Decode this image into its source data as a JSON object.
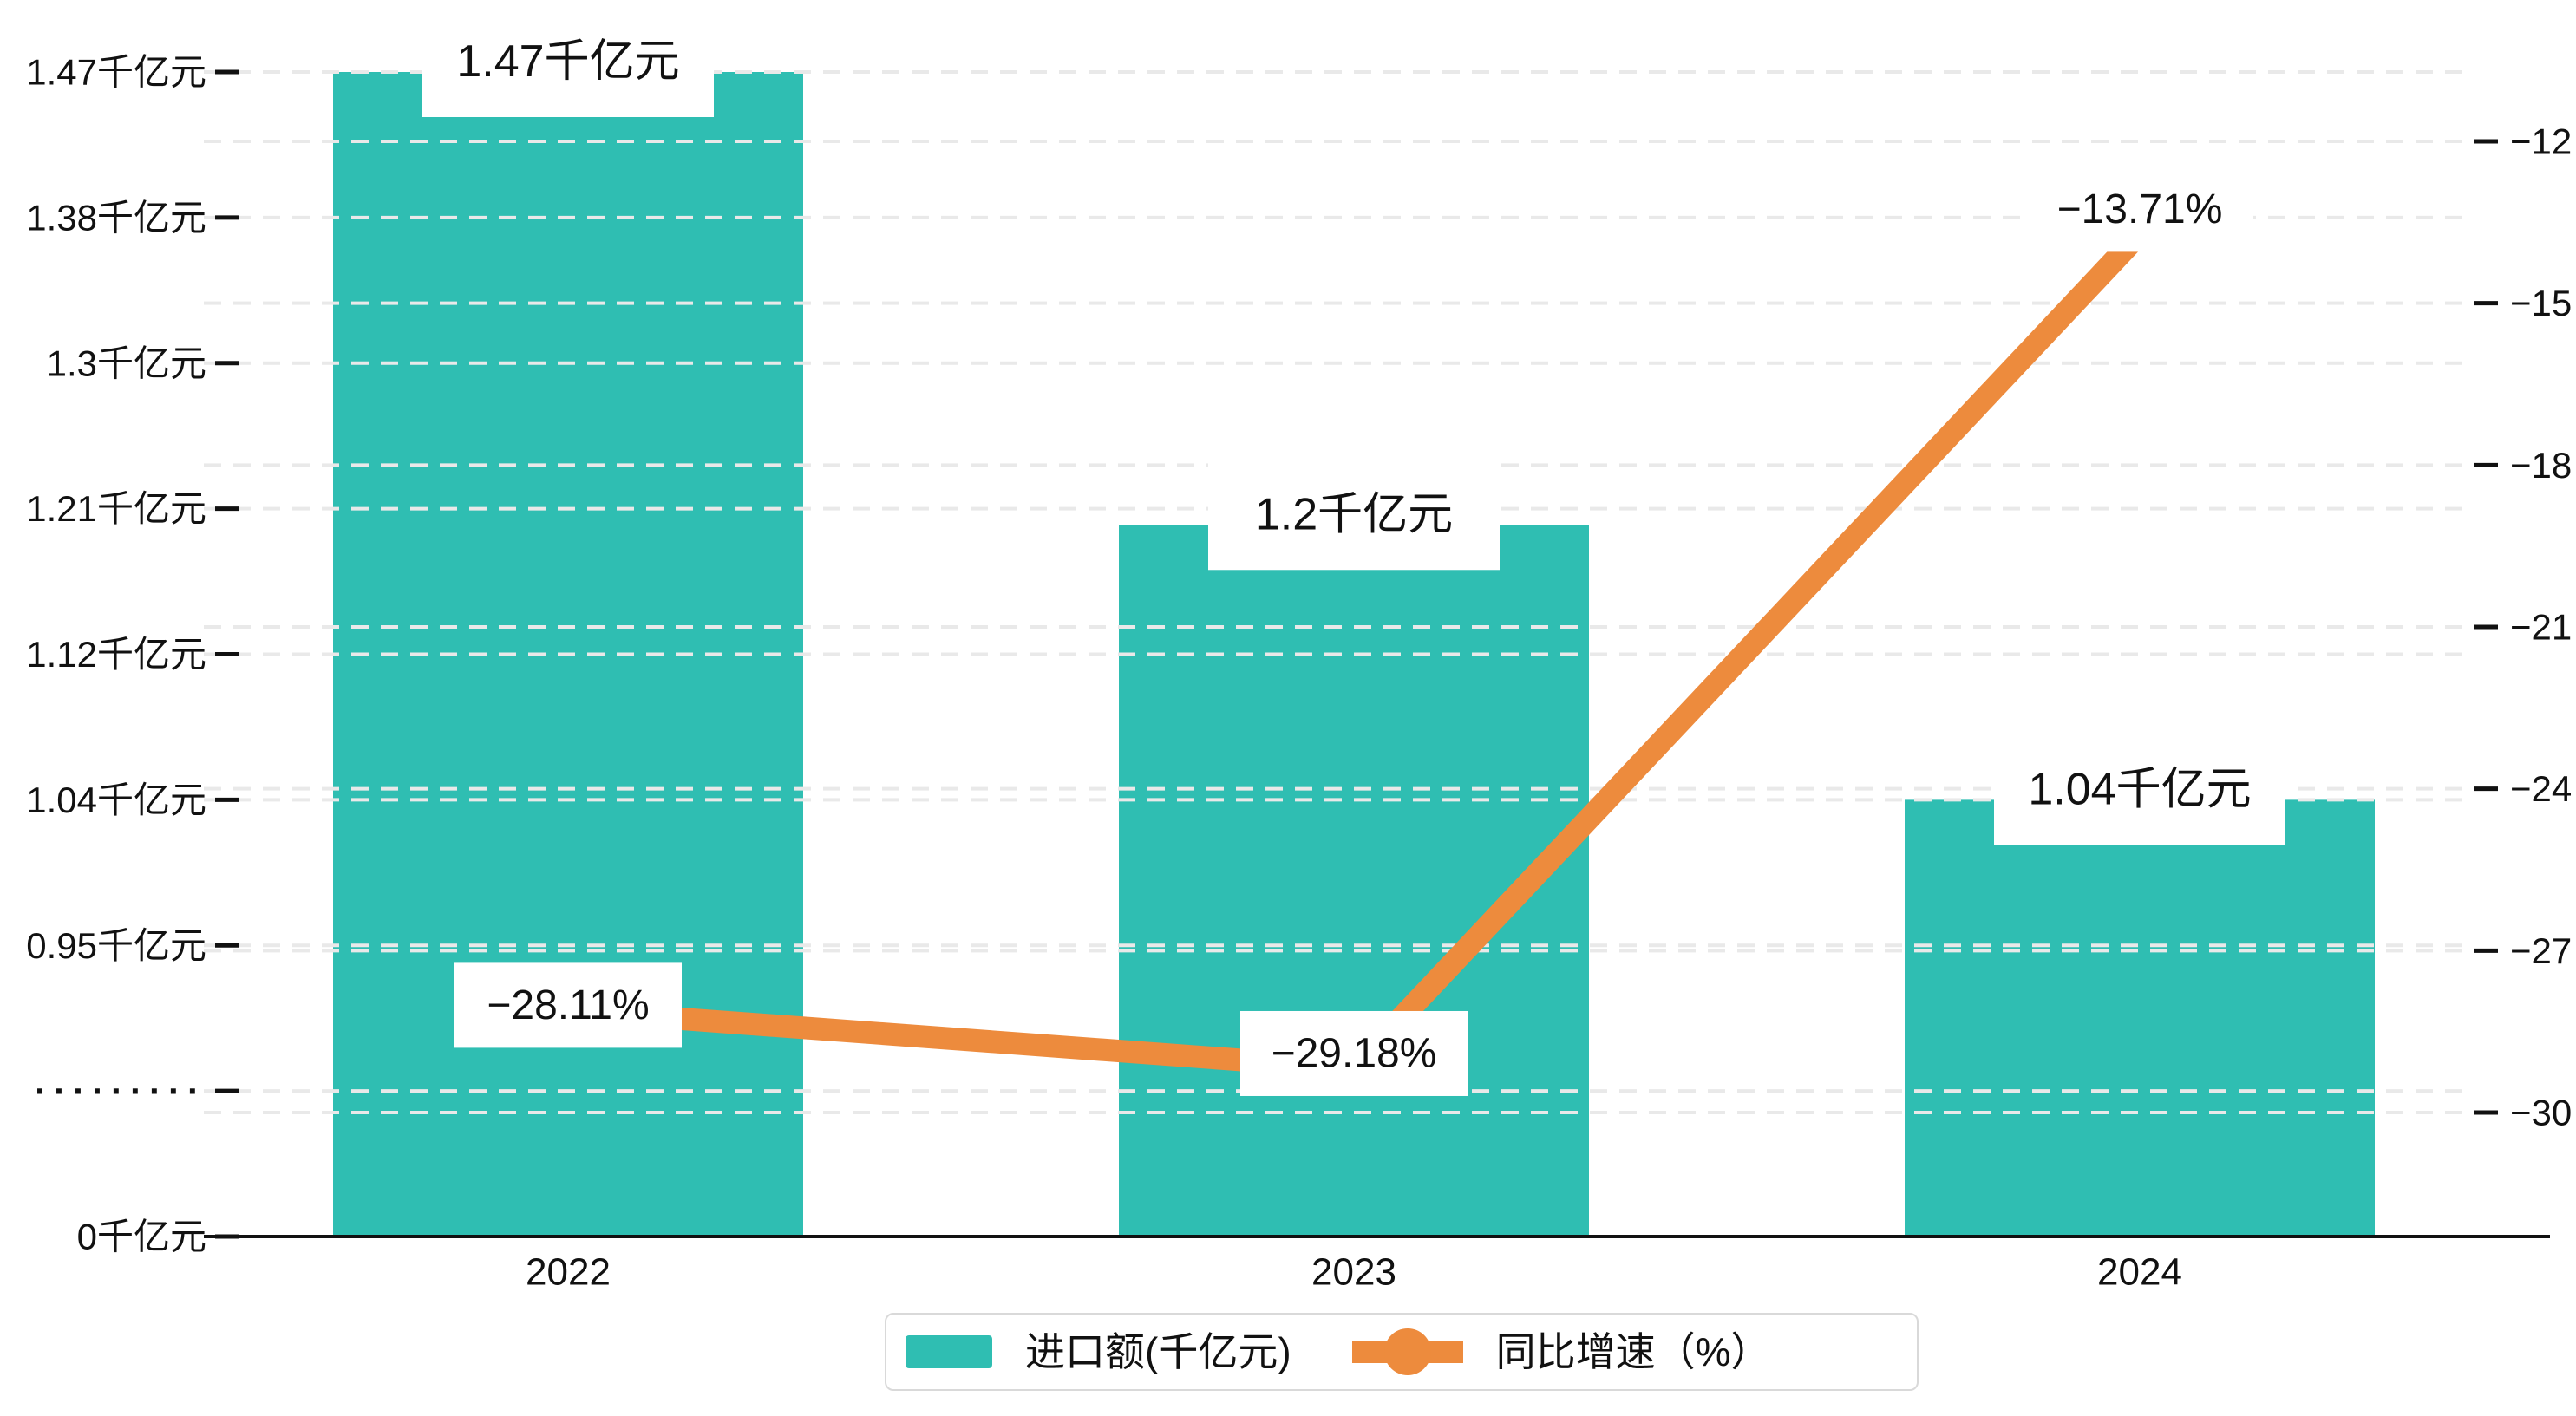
{
  "chart_data": {
    "type": "bar+line",
    "categories": [
      "2022",
      "2023",
      "2024"
    ],
    "series": [
      {
        "name": "进口额(千亿元)",
        "type": "bar",
        "axis": "left",
        "color": "#2FBEB2",
        "values": [
          1.47,
          1.2,
          1.04
        ],
        "data_labels": [
          "1.47千亿元",
          "1.2千亿元",
          "1.04千亿元"
        ]
      },
      {
        "name": "同比增速（%）",
        "type": "line",
        "axis": "right",
        "color": "#ED8B3D",
        "values": [
          -28.11,
          -29.18,
          -13.71
        ],
        "data_labels": [
          "−28.11%",
          "−29.18%",
          "−13.71%"
        ]
      }
    ],
    "left_axis": {
      "tick_labels_topdown": [
        "1.47千亿元",
        "1.38千亿元",
        "1.3千亿元",
        "1.21千亿元",
        "1.12千亿元",
        "1.04千亿元",
        "0.95千亿元",
        "·········",
        "0千亿元"
      ],
      "tick_values_topdown": [
        1.47,
        1.38,
        1.3,
        1.21,
        1.12,
        1.04,
        0.95,
        null,
        0
      ],
      "broken_axis": true
    },
    "right_axis": {
      "tick_labels_topdown": [
        "−12",
        "−15",
        "−18",
        "−21",
        "−24",
        "−27",
        "−30"
      ],
      "tick_values_topdown": [
        -12,
        -15,
        -18,
        -21,
        -24,
        -27,
        -30
      ],
      "range": [
        -30,
        -12
      ]
    },
    "grid": {
      "style": "dashed",
      "color": "#e9e9e9",
      "shown": true
    },
    "legend_position": "bottom"
  },
  "legend": {
    "bar_label": "进口额(千亿元)",
    "line_label": "同比增速（%）"
  },
  "colors": {
    "bar": "#2FBEB2",
    "line": "#ED8B3D",
    "axis_line": "#111111",
    "grid_line": "#e9e9e9",
    "label_box": "#ffffff",
    "text": "#111111"
  }
}
